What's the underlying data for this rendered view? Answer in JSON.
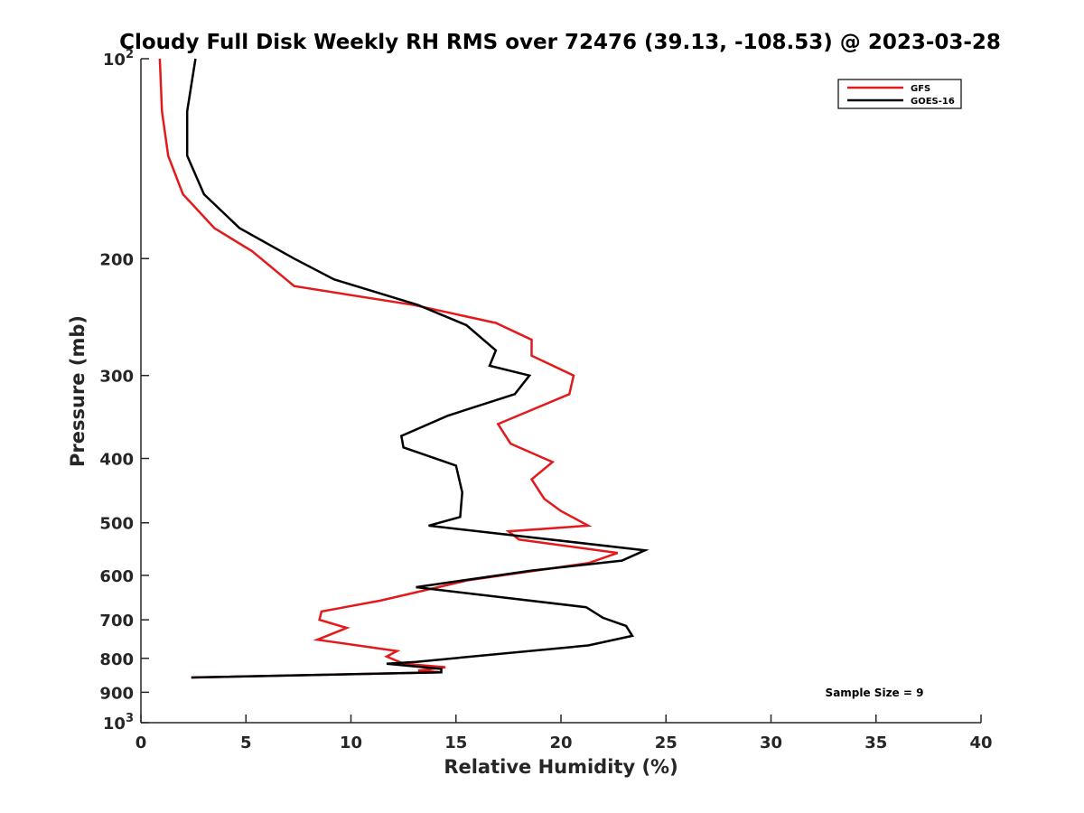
{
  "chart_data": {
    "type": "line",
    "title": "Cloudy Full Disk Weekly RH RMS over 72476 (39.13, -108.53) @ 2023-03-28",
    "xlabel": "Relative Humidity (%)",
    "ylabel": "Pressure (mb)",
    "xlim": [
      0,
      40
    ],
    "ylim": [
      100,
      1000
    ],
    "yscale": "log",
    "y_reversed": true,
    "grid": false,
    "legend_position": "top-right",
    "x_ticks": [
      "0",
      "5",
      "10",
      "15",
      "20",
      "25",
      "30",
      "35",
      "40"
    ],
    "y_ticks": [
      {
        "value": 100,
        "base": "10",
        "exp": "2"
      },
      {
        "value": 200,
        "label": "200"
      },
      {
        "value": 300,
        "label": "300"
      },
      {
        "value": 400,
        "label": "400"
      },
      {
        "value": 500,
        "label": "500"
      },
      {
        "value": 600,
        "label": "600"
      },
      {
        "value": 700,
        "label": "700"
      },
      {
        "value": 800,
        "label": "800"
      },
      {
        "value": 900,
        "label": "900"
      },
      {
        "value": 1000,
        "base": "10",
        "exp": "3"
      }
    ],
    "series": [
      {
        "name": "GFS",
        "color": "#e31a1c",
        "x": [
          0.9,
          1.0,
          1.3,
          2.0,
          3.5,
          5.3,
          7.3,
          13.0,
          16.9,
          18.6,
          18.6,
          20.6,
          20.4,
          17.0,
          17.6,
          19.6,
          18.6,
          19.2,
          20.0,
          21.3,
          17.5,
          18.0,
          22.7,
          21.3,
          15.6,
          11.4,
          8.6,
          8.5,
          9.8,
          8.4,
          12.2,
          11.7,
          12.5,
          14.5,
          13.2,
          14.3,
          2.4
        ],
        "y": [
          100,
          120,
          140,
          160,
          180,
          195,
          220,
          235,
          250,
          265,
          280,
          300,
          320,
          355,
          380,
          405,
          430,
          460,
          480,
          505,
          515,
          530,
          555,
          575,
          610,
          655,
          680,
          700,
          720,
          750,
          780,
          795,
          815,
          825,
          835,
          840,
          855
        ]
      },
      {
        "name": "GOES-16",
        "color": "#000000",
        "x": [
          2.6,
          2.2,
          2.2,
          3.0,
          4.7,
          7.3,
          9.2,
          13.2,
          15.5,
          16.9,
          16.6,
          18.5,
          17.8,
          14.6,
          12.4,
          12.5,
          15.0,
          15.3,
          15.2,
          13.7,
          24.0,
          22.9,
          18.6,
          13.1,
          21.2,
          22.0,
          23.1,
          23.4,
          21.3,
          13.1,
          11.7,
          14.3,
          14.3,
          2.4
        ],
        "y": [
          100,
          120,
          140,
          160,
          180,
          200,
          215,
          235,
          252,
          275,
          290,
          300,
          320,
          345,
          370,
          385,
          410,
          450,
          490,
          505,
          550,
          570,
          590,
          625,
          670,
          695,
          715,
          740,
          765,
          810,
          815,
          830,
          840,
          855
        ]
      }
    ],
    "annotation": "Sample Size = 9"
  }
}
